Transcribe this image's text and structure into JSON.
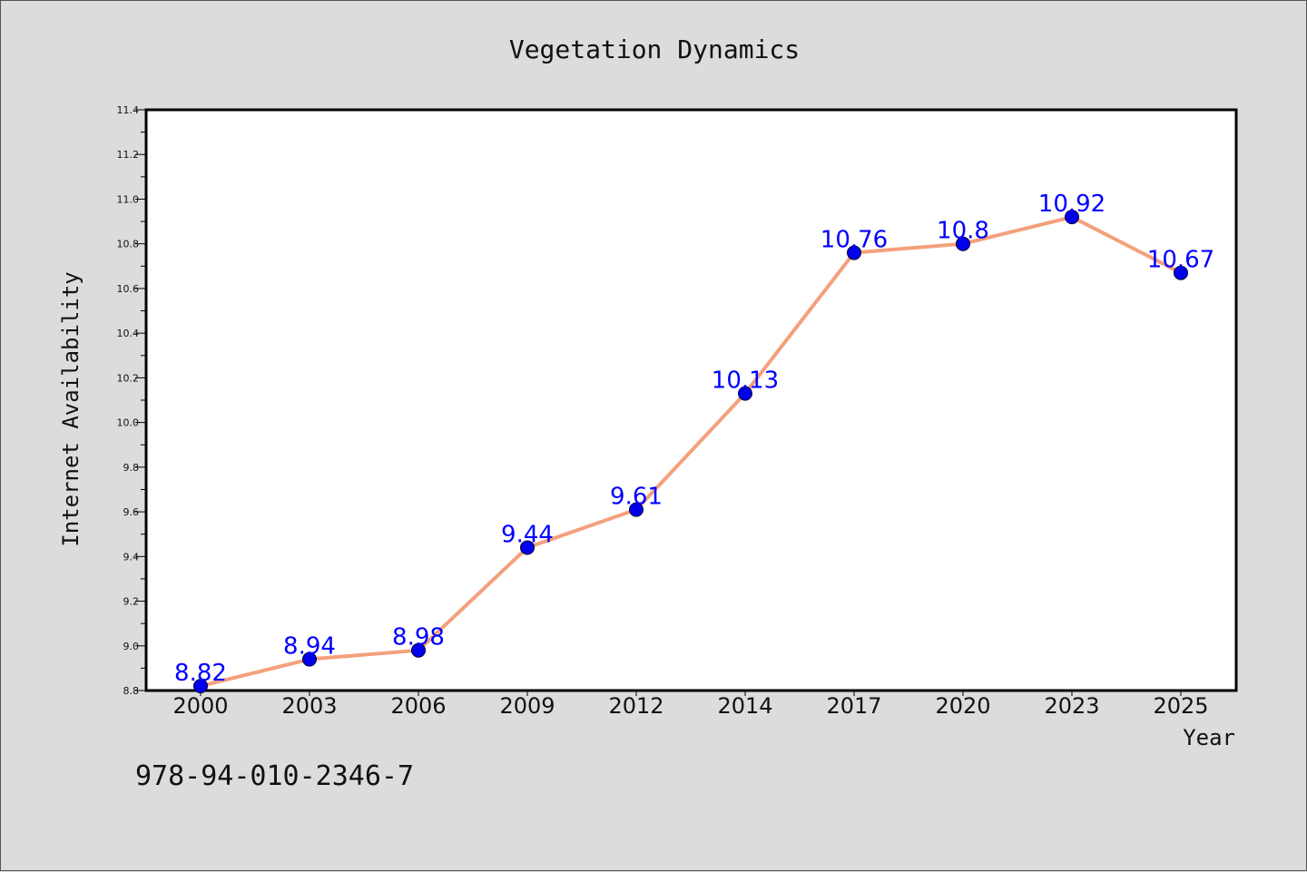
{
  "chart_data": {
    "type": "line",
    "title": "Vegetation Dynamics",
    "xlabel": "Year",
    "ylabel": "Internet Availability",
    "categories": [
      "2000",
      "2003",
      "2006",
      "2009",
      "2012",
      "2014",
      "2017",
      "2020",
      "2023",
      "2025"
    ],
    "series": [
      {
        "values": [
          8.82,
          8.94,
          8.98,
          9.44,
          9.61,
          10.13,
          10.76,
          10.8,
          10.92,
          10.67
        ],
        "labels": [
          "8.82",
          "8.94",
          "8.98",
          "9.44",
          "9.61",
          "10.13",
          "10.76",
          "10.8",
          "10.92",
          "10.67"
        ],
        "line_color": "#f4a07c",
        "marker_color": "#0000ee"
      }
    ],
    "ylim": [
      8.8,
      11.4
    ],
    "yticks": [
      "8.8",
      "9.0",
      "9.2",
      "9.4",
      "9.6",
      "9.8",
      "10.0",
      "10.2",
      "10.4",
      "10.6",
      "10.8",
      "11.0",
      "11.2",
      "11.4"
    ],
    "grid": false,
    "legend": "none"
  },
  "footer": {
    "isbn": "978-94-010-2346-7"
  },
  "colors": {
    "background": "#dcdcdc",
    "plot_background": "#ffffff",
    "label_color": "#0000ff"
  }
}
